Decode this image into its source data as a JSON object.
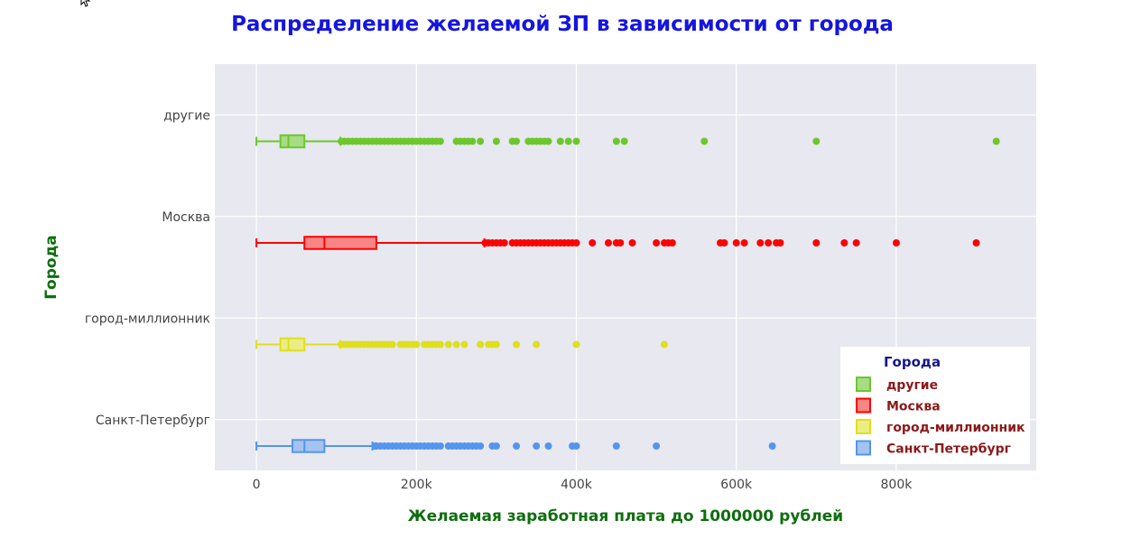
{
  "chart_data": {
    "type": "box",
    "orientation": "horizontal",
    "title": "Распределение желаемой ЗП в зависимости от города",
    "xlabel": "Желаемая заработная плата до 1000000 рублей",
    "ylabel": "Города",
    "xlim": [
      -52000,
      975000
    ],
    "x_ticks": [
      0,
      200000,
      400000,
      600000,
      800000
    ],
    "x_tick_labels": [
      "0",
      "200k",
      "400k",
      "600k",
      "800k"
    ],
    "categories": [
      "другие",
      "Москва",
      "город-миллионник",
      "Санкт-Петербург"
    ],
    "grid": true,
    "legend_position": "bottom-right",
    "legend_title": "Города",
    "series": [
      {
        "name": "другие",
        "color": "#6cc72c",
        "fill": "#a7dc85",
        "min": 0,
        "q1": 30000,
        "median": 40000,
        "q3": 60000,
        "whisker_high": 105000,
        "outliers": [
          106000,
          110000,
          115000,
          120000,
          125000,
          130000,
          135000,
          140000,
          145000,
          150000,
          155000,
          160000,
          165000,
          170000,
          175000,
          180000,
          185000,
          190000,
          195000,
          200000,
          205000,
          210000,
          215000,
          220000,
          225000,
          230000,
          250000,
          255000,
          260000,
          265000,
          270000,
          280000,
          300000,
          320000,
          325000,
          340000,
          345000,
          350000,
          355000,
          360000,
          365000,
          380000,
          390000,
          400000,
          450000,
          460000,
          560000,
          700000,
          925000
        ]
      },
      {
        "name": "Москва",
        "color": "#ff0000",
        "fill": "#f78585",
        "min": 0,
        "q1": 60000,
        "median": 85000,
        "q3": 150000,
        "whisker_high": 285000,
        "outliers": [
          286000,
          290000,
          295000,
          300000,
          305000,
          310000,
          320000,
          325000,
          330000,
          335000,
          340000,
          345000,
          350000,
          355000,
          360000,
          365000,
          370000,
          375000,
          380000,
          385000,
          390000,
          395000,
          400000,
          420000,
          440000,
          450000,
          455000,
          470000,
          500000,
          510000,
          515000,
          520000,
          580000,
          585000,
          600000,
          610000,
          630000,
          640000,
          650000,
          655000,
          700000,
          735000,
          750000,
          800000,
          900000
        ]
      },
      {
        "name": "город-миллионник",
        "color": "#dfdf1f",
        "fill": "#ecec85",
        "min": 0,
        "q1": 30000,
        "median": 40000,
        "q3": 60000,
        "whisker_high": 105000,
        "outliers": [
          106000,
          110000,
          115000,
          120000,
          125000,
          130000,
          135000,
          140000,
          145000,
          150000,
          155000,
          160000,
          165000,
          170000,
          180000,
          185000,
          190000,
          195000,
          200000,
          210000,
          215000,
          220000,
          225000,
          230000,
          240000,
          250000,
          260000,
          280000,
          290000,
          295000,
          300000,
          325000,
          350000,
          400000,
          510000
        ]
      },
      {
        "name": "Санкт-Петербург",
        "color": "#5495ed",
        "fill": "#a4c3ee",
        "min": 0,
        "q1": 45000,
        "median": 60000,
        "q3": 85000,
        "whisker_high": 145000,
        "outliers": [
          148000,
          150000,
          155000,
          160000,
          165000,
          170000,
          175000,
          180000,
          185000,
          190000,
          195000,
          200000,
          205000,
          210000,
          215000,
          220000,
          225000,
          230000,
          240000,
          245000,
          250000,
          255000,
          260000,
          265000,
          270000,
          275000,
          280000,
          295000,
          300000,
          325000,
          350000,
          365000,
          395000,
          400000,
          450000,
          500000,
          645000
        ]
      }
    ]
  },
  "ui": {
    "cursor_icon": "mouse-pointer-icon"
  }
}
